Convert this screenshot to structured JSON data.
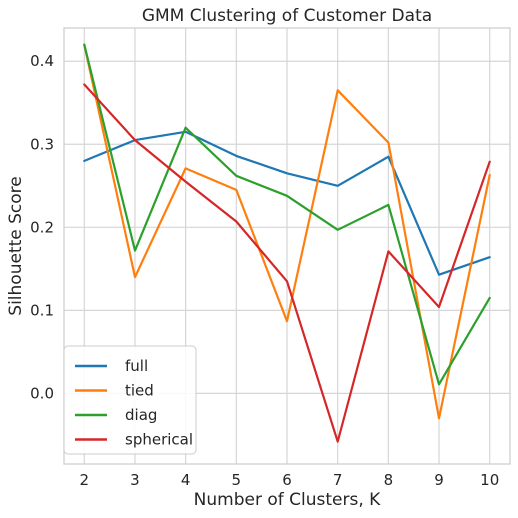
{
  "chart_data": {
    "type": "line",
    "title": "GMM Clustering of Customer Data",
    "xlabel": "Number of Clusters, K",
    "ylabel": "Silhouette Score",
    "x": [
      2,
      3,
      4,
      5,
      6,
      7,
      8,
      9,
      10
    ],
    "xlim": [
      1.6,
      10.4
    ],
    "ylim": [
      -0.085,
      0.44
    ],
    "xticks": [
      2,
      3,
      4,
      5,
      6,
      7,
      8,
      9,
      10
    ],
    "yticks": [
      0.0,
      0.1,
      0.2,
      0.3,
      0.4
    ],
    "ytick_labels": [
      "0.0",
      "0.1",
      "0.2",
      "0.3",
      "0.4"
    ],
    "grid": true,
    "legend_position": "lower-left",
    "series": [
      {
        "name": "full",
        "color": "#1f77b4",
        "values": [
          0.28,
          0.305,
          0.315,
          0.286,
          0.265,
          0.25,
          0.285,
          0.143,
          0.164
        ]
      },
      {
        "name": "tied",
        "color": "#ff7f0e",
        "values": [
          0.42,
          0.14,
          0.271,
          0.245,
          0.087,
          0.365,
          0.302,
          -0.03,
          0.263
        ]
      },
      {
        "name": "diag",
        "color": "#2ca02c",
        "values": [
          0.42,
          0.172,
          0.32,
          0.262,
          0.238,
          0.197,
          0.227,
          0.011,
          0.115
        ]
      },
      {
        "name": "spherical",
        "color": "#d62728",
        "values": [
          0.372,
          0.305,
          0.255,
          0.207,
          0.135,
          -0.058,
          0.171,
          0.104,
          0.279
        ]
      }
    ]
  }
}
